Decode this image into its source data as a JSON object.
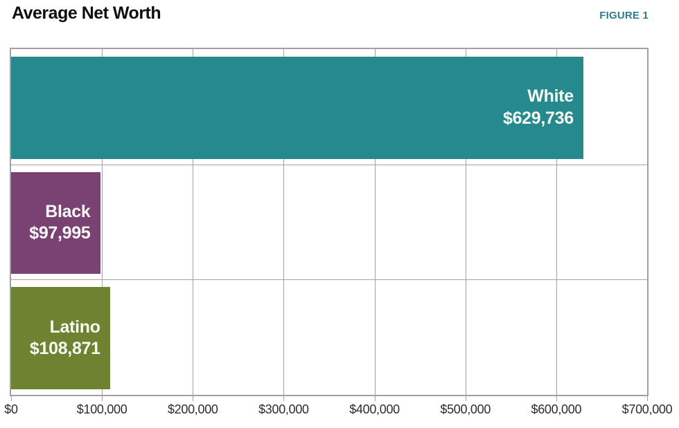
{
  "figure_label": "FIGURE 1",
  "chart_data": {
    "type": "bar",
    "orientation": "horizontal",
    "title": "Average Net Worth",
    "xlabel": "",
    "ylabel": "",
    "categories": [
      "White",
      "Black",
      "Latino"
    ],
    "values": [
      629736,
      97995,
      108871
    ],
    "value_labels": [
      "$629,736",
      "$97,995",
      "$108,871"
    ],
    "bar_colors": [
      "#26898E",
      "#7A4273",
      "#6F8231"
    ],
    "xlim": [
      0,
      700000
    ],
    "x_tick_values": [
      0,
      100000,
      200000,
      300000,
      400000,
      500000,
      600000,
      700000
    ],
    "x_ticks": [
      "$0",
      "$100,000",
      "$200,000",
      "$300,000",
      "$400,000",
      "$500,000",
      "$600,000",
      "$700,000"
    ],
    "grid": true,
    "legend": false
  },
  "colors": {
    "figure_label": "#2E7D8C",
    "grid": "#a0a0a0",
    "axis_text": "#2d2d2d",
    "bar_label_text": "#f6faf3",
    "title_text": "#0f0f0f"
  }
}
